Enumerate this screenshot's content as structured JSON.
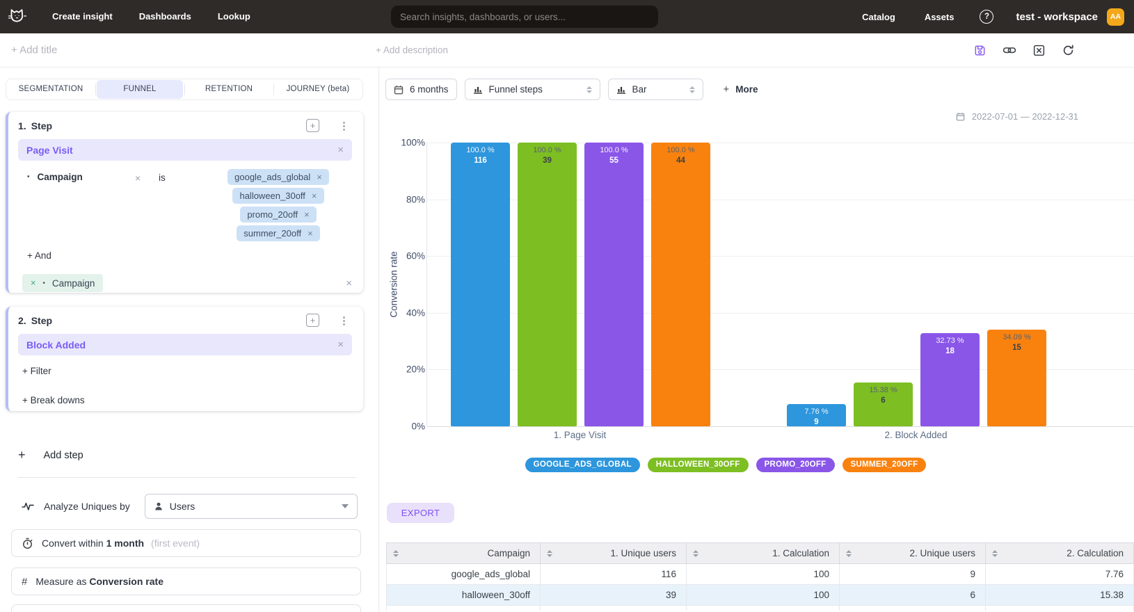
{
  "glyphs": {
    "plus": "+",
    "close": "×",
    "bullet": "•",
    "kebab": "⋮",
    "question": "?",
    "hash": "#"
  },
  "colors": {
    "topbar_bg": "#2f2b28",
    "accent_purple": "#7a5cf5",
    "lavender_bg": "#e9e7fc",
    "tag_blue_bg": "#cde1f6",
    "chip_green_bg": "#e3f2eb",
    "export_bg": "#e9e0fb",
    "export_text": "#7c4ff2",
    "avatar_bg": "#f3a81b",
    "row_alt_bg": "#e8f2fb"
  },
  "topnav": {
    "items": [
      "Create insight",
      "Dashboards",
      "Lookup"
    ],
    "search_placeholder": "Search insights, dashboards, or users...",
    "right_items": [
      "Catalog",
      "Assets"
    ],
    "workspace": "test - workspace",
    "avatar": "AA"
  },
  "header": {
    "add_title": "+ Add title",
    "add_description": "+ Add description"
  },
  "builder": {
    "tabs": [
      {
        "label": "SEGMENTATION"
      },
      {
        "label": "FUNNEL",
        "active": true
      },
      {
        "label": "RETENTION"
      },
      {
        "label": "JOURNEY (beta)"
      }
    ],
    "steps": [
      {
        "index": "1.",
        "title": "Step",
        "event": "Page Visit",
        "filter": {
          "property": "Campaign",
          "operator": "is",
          "values": [
            "google_ads_global",
            "halloween_30off",
            "promo_20off",
            "summer_20off"
          ]
        },
        "add_and": "+ And",
        "breakdown": "Campaign"
      },
      {
        "index": "2.",
        "title": "Step",
        "event": "Block Added",
        "add_filter": "+ Filter",
        "add_breakdowns": "+ Break downs"
      }
    ],
    "add_step": "Add step",
    "analyze": {
      "label": "Analyze Uniques by",
      "value": "Users"
    },
    "convert": {
      "prefix": "Convert within",
      "value": "1 month",
      "hint": "(first event)"
    },
    "measure": {
      "prefix": "Measure as",
      "value": "Conversion rate"
    }
  },
  "chart_controls": {
    "range_label": "6 months",
    "view_label": "Funnel steps",
    "type_label": "Bar",
    "more_label": "More",
    "date_range": "2022-07-01 — 2022-12-31"
  },
  "chart_data": {
    "type": "bar",
    "ylabel": "Conversion rate",
    "ylim": [
      0,
      100
    ],
    "yticks": [
      0,
      20,
      40,
      60,
      80,
      100
    ],
    "ytick_format": "percent",
    "grid": true,
    "legend_position": "bottom",
    "categories": [
      "1. Page Visit",
      "2. Block Added"
    ],
    "series": [
      {
        "name": "GOOGLE_ADS_GLOBAL",
        "color": "#2d96dc",
        "values": [
          100.0,
          7.76
        ],
        "counts": [
          116,
          9
        ],
        "labels": [
          "100.0 %",
          "7.76 %"
        ],
        "label_dark": false
      },
      {
        "name": "HALLOWEEN_30OFF",
        "color": "#7dbe23",
        "values": [
          100.0,
          15.38
        ],
        "counts": [
          39,
          6
        ],
        "labels": [
          "100.0 %",
          "15.38 %"
        ],
        "label_dark": true
      },
      {
        "name": "PROMO_20OFF",
        "color": "#8a56e8",
        "values": [
          100.0,
          32.73
        ],
        "counts": [
          55,
          18
        ],
        "labels": [
          "100.0 %",
          "32.73 %"
        ],
        "label_dark": false
      },
      {
        "name": "SUMMER_20OFF",
        "color": "#f9820f",
        "values": [
          100.0,
          34.09
        ],
        "counts": [
          44,
          15
        ],
        "labels": [
          "100.0 %",
          "34.09 %"
        ],
        "label_dark": true
      }
    ]
  },
  "export_label": "EXPORT",
  "table": {
    "columns": [
      "Campaign",
      "1. Unique users",
      "1. Calculation",
      "2. Unique users",
      "2. Calculation"
    ],
    "rows": [
      [
        "google_ads_global",
        "116",
        "100",
        "9",
        "7.76"
      ],
      [
        "halloween_30off",
        "39",
        "100",
        "6",
        "15.38"
      ]
    ]
  }
}
